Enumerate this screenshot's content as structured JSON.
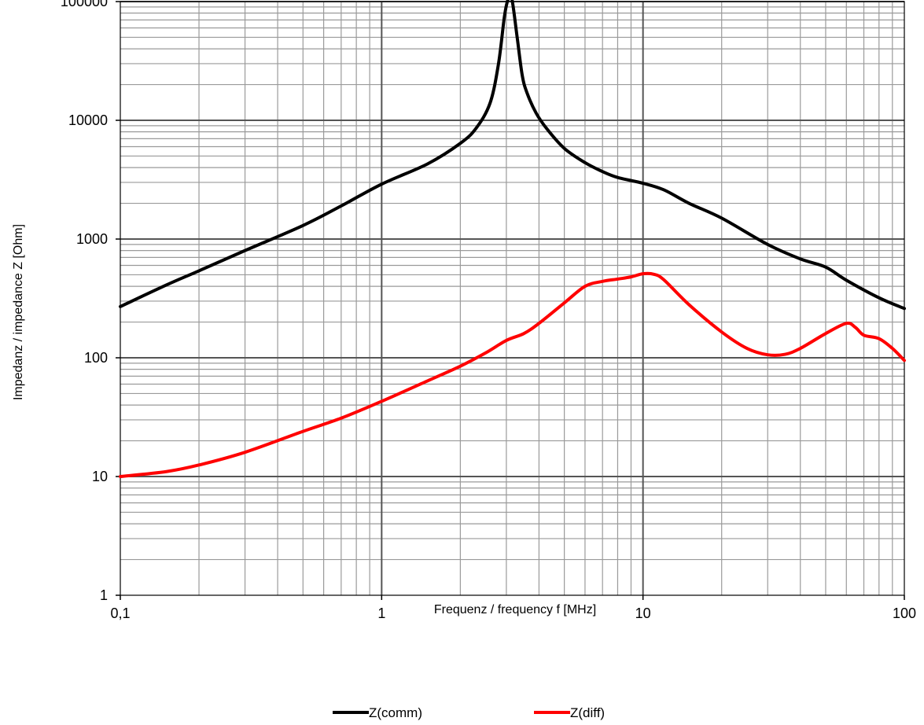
{
  "chart_data": {
    "type": "line",
    "xscale": "log",
    "yscale": "log",
    "xlim": [
      0.1,
      100
    ],
    "ylim": [
      1,
      100000
    ],
    "grid": true,
    "legend_position": "bottom",
    "xlabel": "Frequenz / frequency f [MHz]",
    "ylabel": "Impedanz / impedance Z [Ohm]",
    "x_tick_labels": [
      "0,1",
      "1",
      "10",
      "100"
    ],
    "y_tick_labels": [
      "1",
      "10",
      "100",
      "1000",
      "10000",
      "100000"
    ],
    "series": [
      {
        "name": "Z(comm)",
        "color": "#000000",
        "x": [
          0.1,
          0.15,
          0.2,
          0.3,
          0.5,
          0.7,
          1,
          1.5,
          2,
          2.3,
          2.6,
          2.8,
          2.95,
          3.05,
          3.15,
          3.3,
          3.45,
          3.6,
          3.9,
          4.3,
          5,
          6,
          7,
          8,
          10,
          12,
          15,
          20,
          30,
          40,
          50,
          60,
          80,
          100
        ],
        "y": [
          270,
          410,
          540,
          800,
          1300,
          1900,
          2900,
          4300,
          6400,
          8600,
          14000,
          30000,
          75000,
          105000,
          105000,
          50000,
          24000,
          17000,
          11500,
          8400,
          5800,
          4400,
          3700,
          3300,
          2950,
          2600,
          2000,
          1500,
          900,
          680,
          580,
          450,
          320,
          260
        ]
      },
      {
        "name": "Z(diff)",
        "color": "#ff0000",
        "x": [
          0.1,
          0.15,
          0.2,
          0.3,
          0.5,
          0.7,
          1,
          1.5,
          2,
          2.5,
          3,
          3.5,
          4,
          5,
          6,
          7,
          8,
          9,
          10,
          11,
          12,
          15,
          20,
          25,
          30,
          35,
          40,
          50,
          60,
          65,
          70,
          80,
          90,
          100
        ],
        "y": [
          10,
          11,
          12.5,
          16,
          24,
          31,
          43,
          64,
          85,
          110,
          140,
          160,
          195,
          290,
          400,
          440,
          460,
          480,
          510,
          505,
          455,
          280,
          165,
          120,
          106,
          107,
          120,
          160,
          195,
          180,
          155,
          145,
          120,
          95
        ]
      }
    ]
  }
}
